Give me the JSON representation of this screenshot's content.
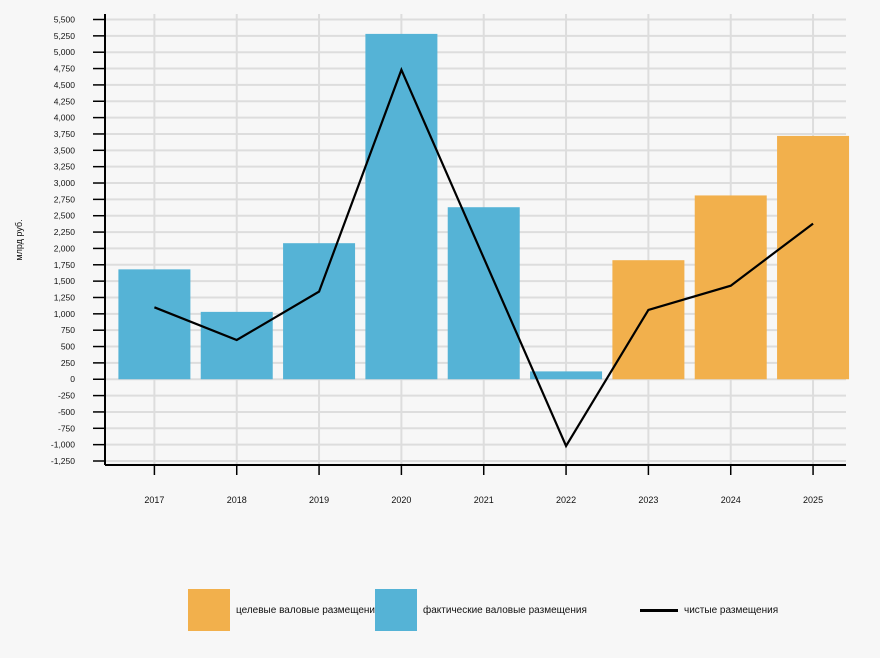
{
  "chart_data": {
    "type": "bar",
    "categories": [
      "2017",
      "2018",
      "2019",
      "2020",
      "2021",
      "2022",
      "2023",
      "2024",
      "2025"
    ],
    "series": [
      {
        "name": "фактические валовые размещения",
        "type": "bar",
        "color": "#55b3d6",
        "values": [
          1680,
          1030,
          2080,
          5280,
          2630,
          120,
          null,
          null,
          null
        ]
      },
      {
        "name": "целевые валовые размещения",
        "type": "bar",
        "color": "#f2b04c",
        "values": [
          null,
          null,
          null,
          null,
          null,
          null,
          1820,
          2810,
          3720
        ]
      },
      {
        "name": "чистые размещения",
        "type": "line",
        "color": "#000000",
        "values": [
          1100,
          600,
          1340,
          4730,
          null,
          -1020,
          1060,
          1430,
          2380
        ]
      }
    ],
    "ylabel": "млрд руб.",
    "xlabel": "",
    "ylim": [
      -1250,
      5500
    ],
    "yticks": [
      -1250,
      -1000,
      -750,
      -500,
      -250,
      0,
      250,
      500,
      750,
      1000,
      1250,
      1500,
      1750,
      2000,
      2250,
      2500,
      2750,
      3000,
      3250,
      3500,
      3750,
      4000,
      4250,
      4500,
      4750,
      5000,
      5250,
      5500
    ],
    "ytick_labels": [
      "-1,250",
      "-1,000",
      "-750",
      "-500",
      "-250",
      "0",
      "250",
      "500",
      "750",
      "1,000",
      "1,250",
      "1,500",
      "1,750",
      "2,000",
      "2,250",
      "2,500",
      "2,750",
      "3,000",
      "3,250",
      "3,500",
      "3,750",
      "4,000",
      "4,250",
      "4,500",
      "4,750",
      "5,000",
      "5,250",
      "5,500"
    ],
    "grid": true,
    "legend_position": "bottom"
  },
  "legend": {
    "target_label": "целевые валовые размещения",
    "actual_label": "фактические валовые размещения",
    "net_label": "чистые размещения"
  },
  "colors": {
    "target": "#f2b04c",
    "actual": "#55b3d6",
    "net": "#000000",
    "grid": "#dddddd"
  }
}
